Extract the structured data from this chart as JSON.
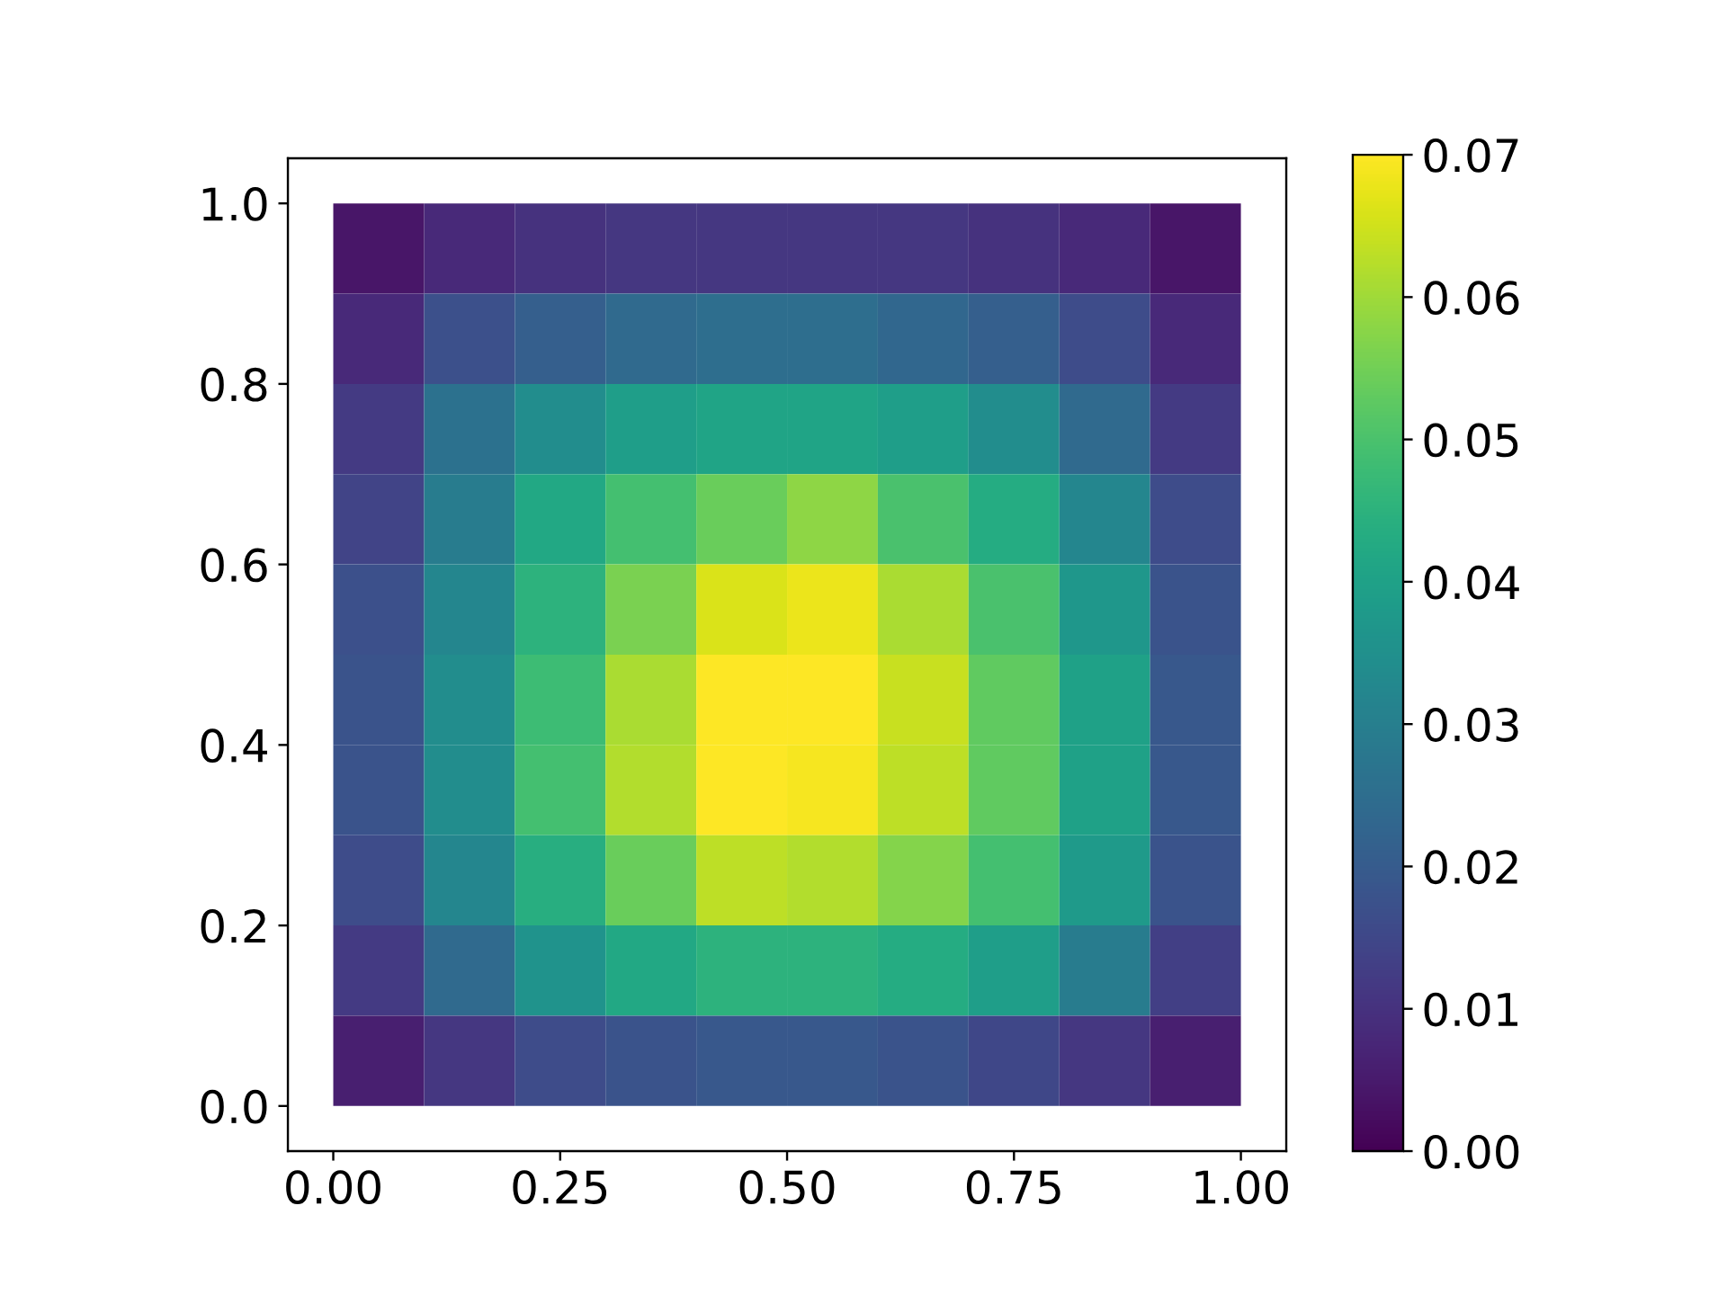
{
  "chart_data": {
    "type": "heatmap",
    "x": [
      0.05,
      0.15,
      0.25,
      0.35,
      0.45,
      0.55,
      0.65,
      0.75,
      0.85,
      0.95
    ],
    "y": [
      0.95,
      0.85,
      0.75,
      0.65,
      0.55,
      0.45,
      0.35,
      0.25,
      0.15,
      0.05
    ],
    "cells": [
      [
        0.004,
        0.008,
        0.01,
        0.011,
        0.011,
        0.011,
        0.011,
        0.01,
        0.008,
        0.004
      ],
      [
        0.008,
        0.017,
        0.021,
        0.024,
        0.025,
        0.025,
        0.023,
        0.021,
        0.016,
        0.008
      ],
      [
        0.012,
        0.026,
        0.034,
        0.039,
        0.041,
        0.041,
        0.039,
        0.034,
        0.024,
        0.012
      ],
      [
        0.014,
        0.029,
        0.042,
        0.049,
        0.054,
        0.058,
        0.05,
        0.043,
        0.032,
        0.016
      ],
      [
        0.017,
        0.032,
        0.045,
        0.056,
        0.066,
        0.068,
        0.061,
        0.05,
        0.037,
        0.018
      ],
      [
        0.018,
        0.034,
        0.048,
        0.061,
        0.07,
        0.07,
        0.064,
        0.053,
        0.04,
        0.019
      ],
      [
        0.018,
        0.034,
        0.049,
        0.062,
        0.07,
        0.069,
        0.063,
        0.053,
        0.04,
        0.019
      ],
      [
        0.016,
        0.032,
        0.044,
        0.054,
        0.063,
        0.062,
        0.057,
        0.049,
        0.038,
        0.018
      ],
      [
        0.012,
        0.024,
        0.036,
        0.042,
        0.045,
        0.045,
        0.043,
        0.039,
        0.029,
        0.013
      ],
      [
        0.006,
        0.011,
        0.016,
        0.018,
        0.019,
        0.019,
        0.018,
        0.015,
        0.011,
        0.006
      ]
    ],
    "xlim": [
      -0.05,
      1.05
    ],
    "ylim": [
      -0.05,
      1.05
    ],
    "xticks": [
      {
        "value": 0,
        "label": "0.00"
      },
      {
        "value": 0.25,
        "label": "0.25"
      },
      {
        "value": 0.5,
        "label": "0.50"
      },
      {
        "value": 0.75,
        "label": "0.75"
      },
      {
        "value": 1,
        "label": "1.00"
      }
    ],
    "yticks": [
      {
        "value": 0,
        "label": "0.0"
      },
      {
        "value": 0.2,
        "label": "0.2"
      },
      {
        "value": 0.4,
        "label": "0.4"
      },
      {
        "value": 0.6,
        "label": "0.6"
      },
      {
        "value": 0.8,
        "label": "0.8"
      },
      {
        "value": 1,
        "label": "1.0"
      }
    ],
    "clim": [
      0,
      0.07
    ],
    "cticks": [
      {
        "value": 0,
        "label": "0.00"
      },
      {
        "value": 0.01,
        "label": "0.01"
      },
      {
        "value": 0.02,
        "label": "0.02"
      },
      {
        "value": 0.03,
        "label": "0.03"
      },
      {
        "value": 0.04,
        "label": "0.04"
      },
      {
        "value": 0.05,
        "label": "0.05"
      },
      {
        "value": 0.06,
        "label": "0.06"
      },
      {
        "value": 0.07,
        "label": "0.07"
      }
    ]
  }
}
